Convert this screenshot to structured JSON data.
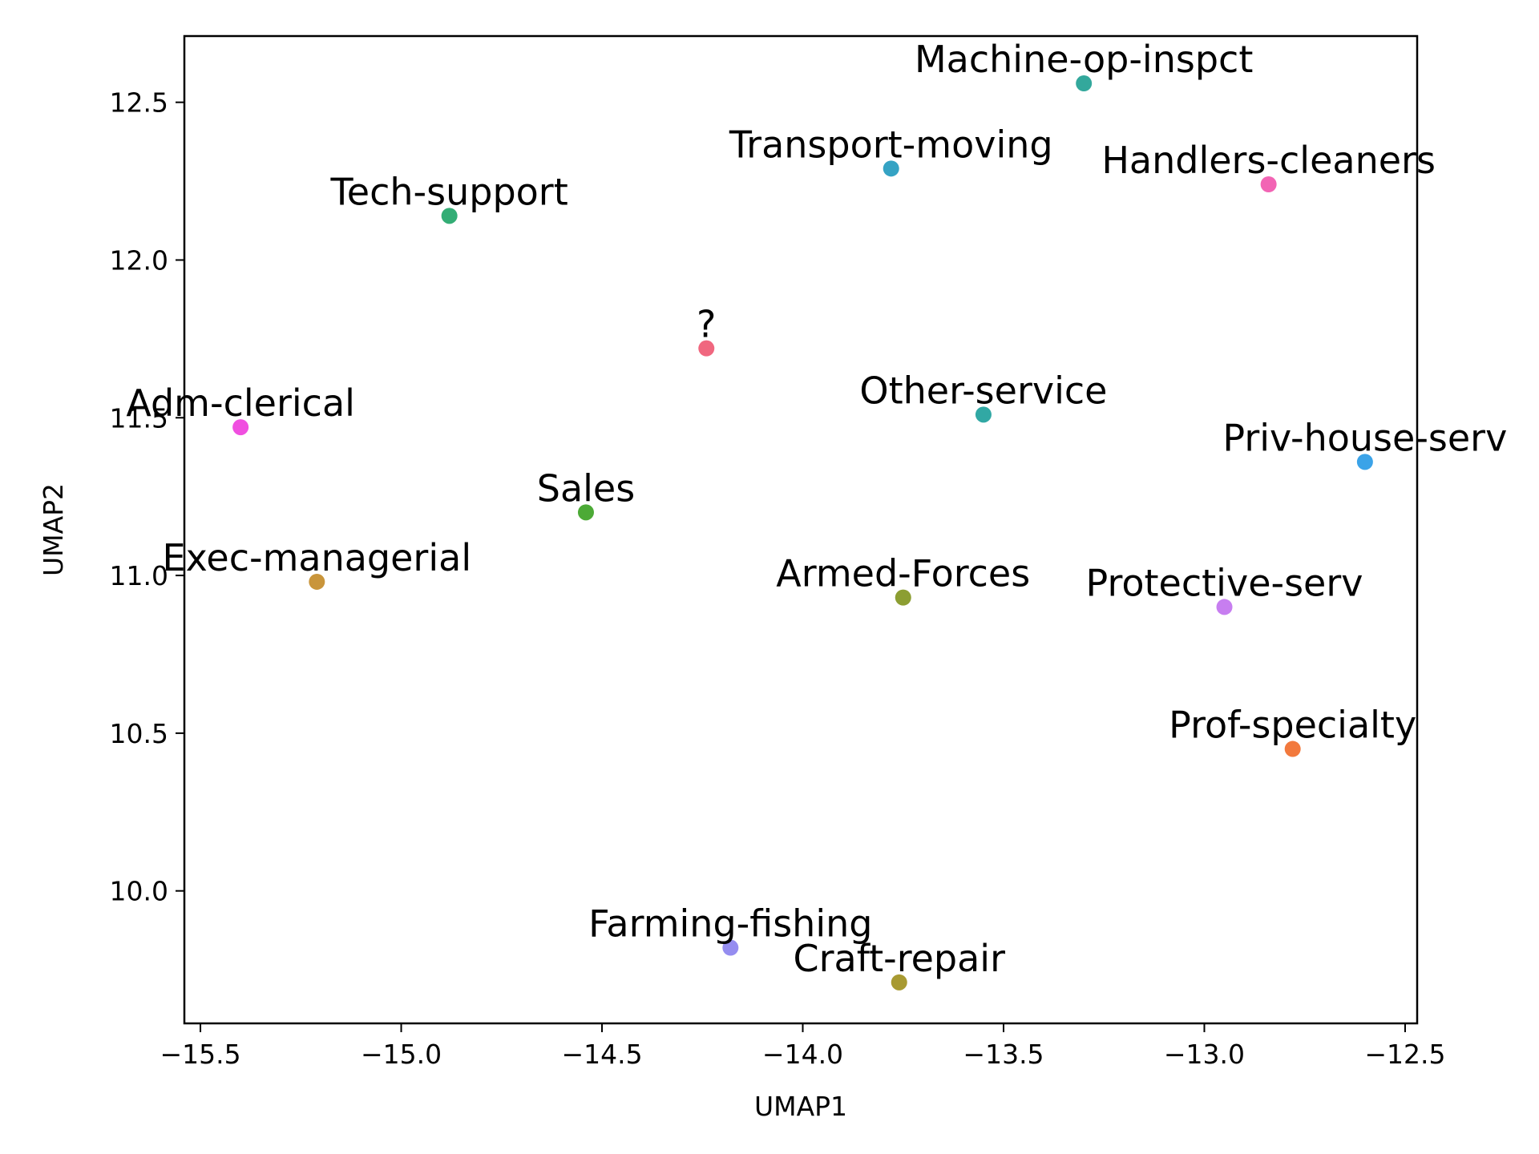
{
  "chart_data": {
    "type": "scatter",
    "title": "",
    "xlabel": "UMAP1",
    "ylabel": "UMAP2",
    "xlim": [
      -15.54,
      -12.47
    ],
    "ylim": [
      9.58,
      12.71
    ],
    "xticks": [
      -15.5,
      -15.0,
      -14.5,
      -14.0,
      -13.5,
      -13.0,
      -12.5
    ],
    "yticks": [
      10.0,
      10.5,
      11.0,
      11.5,
      12.0,
      12.5
    ],
    "xtick_labels": [
      "−15.5",
      "−15.0",
      "−14.5",
      "−14.0",
      "−13.5",
      "−13.0",
      "−12.5"
    ],
    "ytick_labels": [
      "10.0",
      "10.5",
      "11.0",
      "11.5",
      "12.0",
      "12.5"
    ],
    "grid": false,
    "legend": "none",
    "points": [
      {
        "label": "?",
        "x": -14.24,
        "y": 11.72,
        "color": "#f0677f"
      },
      {
        "label": "Adm-clerical",
        "x": -15.4,
        "y": 11.47,
        "color": "#f04fe0"
      },
      {
        "label": "Armed-Forces",
        "x": -13.75,
        "y": 10.93,
        "color": "#8c9e32"
      },
      {
        "label": "Craft-repair",
        "x": -13.76,
        "y": 9.71,
        "color": "#a89a32"
      },
      {
        "label": "Exec-managerial",
        "x": -15.21,
        "y": 10.98,
        "color": "#c9953b"
      },
      {
        "label": "Farming-fishing",
        "x": -14.18,
        "y": 9.82,
        "color": "#958df0"
      },
      {
        "label": "Handlers-cleaners",
        "x": -12.84,
        "y": 12.24,
        "color": "#f264b4"
      },
      {
        "label": "Machine-op-inspct",
        "x": -13.3,
        "y": 12.56,
        "color": "#33a89c"
      },
      {
        "label": "Other-service",
        "x": -13.55,
        "y": 11.51,
        "color": "#31a8a4"
      },
      {
        "label": "Priv-house-serv",
        "x": -12.6,
        "y": 11.36,
        "color": "#3ba3e8"
      },
      {
        "label": "Prof-specialty",
        "x": -12.78,
        "y": 10.45,
        "color": "#f2793d"
      },
      {
        "label": "Protective-serv",
        "x": -12.95,
        "y": 10.9,
        "color": "#c77ef0"
      },
      {
        "label": "Sales",
        "x": -14.54,
        "y": 11.2,
        "color": "#4caa36"
      },
      {
        "label": "Tech-support",
        "x": -14.88,
        "y": 12.14,
        "color": "#33ad75"
      },
      {
        "label": "Transport-moving",
        "x": -13.78,
        "y": 12.29,
        "color": "#35a3c4"
      }
    ]
  }
}
